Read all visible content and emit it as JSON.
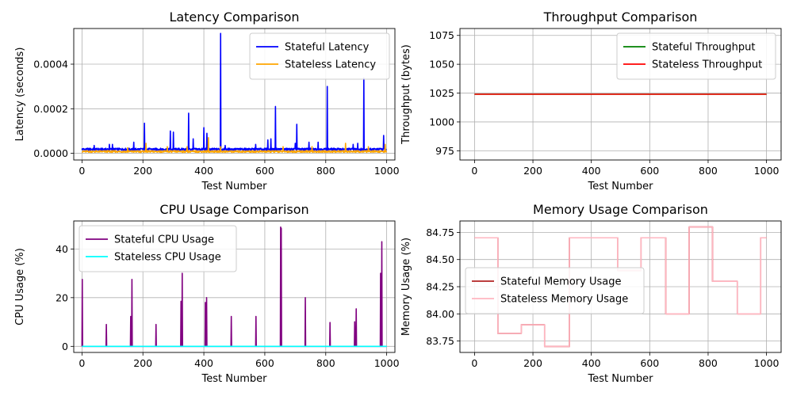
{
  "chart_data": [
    {
      "id": "latency",
      "type": "line",
      "title": "Latency Comparison",
      "xlabel": "Test Number",
      "ylabel": "Latency (seconds)",
      "xlim": [
        -27,
        1027
      ],
      "ylim": [
        -3e-05,
        0.00056
      ],
      "xticks": [
        0,
        200,
        400,
        600,
        800,
        1000
      ],
      "yticks": [
        0,
        0.0002,
        0.0004
      ],
      "ytick_labels": [
        "0.0000",
        "0.0002",
        "0.0004"
      ],
      "grid": true,
      "legend": "top-right",
      "series": [
        {
          "name": "Stateful Latency",
          "color": "#0000ff",
          "baseline": 1.8e-05,
          "noise": 5e-06,
          "spikes": [
            [
              40,
              3.5e-05
            ],
            [
              90,
              4e-05
            ],
            [
              100,
              4e-05
            ],
            [
              170,
              5e-05
            ],
            [
              205,
              0.000135
            ],
            [
              290,
              0.0001
            ],
            [
              300,
              9.5e-05
            ],
            [
              350,
              0.00018
            ],
            [
              365,
              6.5e-05
            ],
            [
              400,
              0.000115
            ],
            [
              410,
              9e-05
            ],
            [
              455,
              0.000538
            ],
            [
              470,
              3.5e-05
            ],
            [
              570,
              4e-05
            ],
            [
              610,
              6e-05
            ],
            [
              620,
              6.5e-05
            ],
            [
              635,
              0.00021
            ],
            [
              700,
              4.5e-05
            ],
            [
              705,
              0.00013
            ],
            [
              745,
              5e-05
            ],
            [
              775,
              5e-05
            ],
            [
              805,
              0.0003
            ],
            [
              890,
              4e-05
            ],
            [
              905,
              4.5e-05
            ],
            [
              925,
              0.000337
            ],
            [
              990,
              8e-05
            ]
          ]
        },
        {
          "name": "Stateless Latency",
          "color": "#ffa500",
          "baseline": 8e-06,
          "noise": 4e-06,
          "spikes": [
            [
              150,
              2.5e-05
            ],
            [
              210,
              4.5e-05
            ],
            [
              280,
              3e-05
            ],
            [
              345,
              3e-05
            ],
            [
              415,
              7e-05
            ],
            [
              455,
              3e-05
            ],
            [
              660,
              3e-05
            ],
            [
              755,
              3e-05
            ],
            [
              865,
              4.5e-05
            ],
            [
              940,
              3e-05
            ],
            [
              995,
              4e-05
            ]
          ]
        }
      ]
    },
    {
      "id": "throughput",
      "type": "line",
      "title": "Throughput Comparison",
      "xlabel": "Test Number",
      "ylabel": "Throughput (bytes)",
      "xlim": [
        -50,
        1050
      ],
      "ylim": [
        967,
        1081
      ],
      "xticks": [
        0,
        200,
        400,
        600,
        800,
        1000
      ],
      "yticks": [
        975,
        1000,
        1025,
        1050,
        1075
      ],
      "ytick_labels": [
        "975",
        "1000",
        "1025",
        "1050",
        "1075"
      ],
      "grid": true,
      "legend": "top-right",
      "series": [
        {
          "name": "Stateful Throughput",
          "color": "#008000",
          "x": [
            0,
            1000
          ],
          "values": [
            1024,
            1024
          ]
        },
        {
          "name": "Stateless Throughput",
          "color": "#ff0000",
          "x": [
            0,
            1000
          ],
          "values": [
            1024,
            1024
          ]
        }
      ]
    },
    {
      "id": "cpu",
      "type": "line",
      "title": "CPU Usage Comparison",
      "xlabel": "Test Number",
      "ylabel": "CPU Usage (%)",
      "xlim": [
        -27,
        1027
      ],
      "ylim": [
        -2.5,
        51.5
      ],
      "xticks": [
        0,
        200,
        400,
        600,
        800,
        1000
      ],
      "yticks": [
        0,
        20,
        40
      ],
      "ytick_labels": [
        "0",
        "20",
        "40"
      ],
      "grid": true,
      "legend": "top-left",
      "series": [
        {
          "name": "Stateful CPU Usage",
          "color": "#800080",
          "baseline": 0,
          "spikes": [
            [
              1,
              27.5
            ],
            [
              80,
              9
            ],
            [
              160,
              12.3
            ],
            [
              164,
              27.5
            ],
            [
              243,
              9
            ],
            [
              325,
              18.5
            ],
            [
              329,
              30
            ],
            [
              405,
              18
            ],
            [
              409,
              20
            ],
            [
              490,
              12.3
            ],
            [
              571,
              12.3
            ],
            [
              652,
              49
            ],
            [
              654,
              48.5
            ],
            [
              733,
              20
            ],
            [
              814,
              9.8
            ],
            [
              895,
              10.1
            ],
            [
              900,
              15.4
            ],
            [
              980,
              30
            ],
            [
              984,
              43
            ]
          ]
        },
        {
          "name": "Stateless CPU Usage",
          "color": "#00ffff",
          "x": [
            0,
            1000
          ],
          "values": [
            0,
            0
          ]
        }
      ]
    },
    {
      "id": "memory",
      "type": "line",
      "title": "Memory Usage Comparison",
      "xlabel": "Test Number",
      "ylabel": "Memory Usage (%)",
      "xlim": [
        -50,
        1050
      ],
      "ylim": [
        83.645,
        84.855
      ],
      "xticks": [
        0,
        200,
        400,
        600,
        800,
        1000
      ],
      "yticks": [
        83.75,
        84,
        84.25,
        84.5,
        84.75
      ],
      "ytick_labels": [
        "83.75",
        "84.00",
        "84.25",
        "84.50",
        "84.75"
      ],
      "grid": true,
      "legend": "center-left",
      "series": [
        {
          "name": "Stateful Memory Usage",
          "color": "#b22222",
          "x": [
            0,
            80,
            80,
            160,
            160,
            240,
            240,
            325,
            325,
            490,
            490,
            570,
            570,
            655,
            655,
            735,
            735,
            815,
            815,
            900,
            900,
            980,
            980,
            1000
          ],
          "values": [
            84.7,
            84.7,
            83.82,
            83.82,
            83.9,
            83.9,
            83.7,
            83.7,
            84.7,
            84.7,
            84.4,
            84.4,
            84.7,
            84.7,
            84.0,
            84.0,
            84.8,
            84.8,
            84.3,
            84.3,
            84.0,
            84.0,
            84.7,
            84.7
          ]
        },
        {
          "name": "Stateless Memory Usage",
          "color": "#ffb6c1",
          "x": [
            0,
            80,
            80,
            160,
            160,
            240,
            240,
            325,
            325,
            490,
            490,
            570,
            570,
            655,
            655,
            735,
            735,
            815,
            815,
            900,
            900,
            980,
            980,
            1000
          ],
          "values": [
            84.7,
            84.7,
            83.82,
            83.82,
            83.9,
            83.9,
            83.7,
            83.7,
            84.7,
            84.7,
            84.4,
            84.4,
            84.7,
            84.7,
            84.0,
            84.0,
            84.8,
            84.8,
            84.3,
            84.3,
            84.0,
            84.0,
            84.7,
            84.7
          ]
        }
      ]
    }
  ]
}
